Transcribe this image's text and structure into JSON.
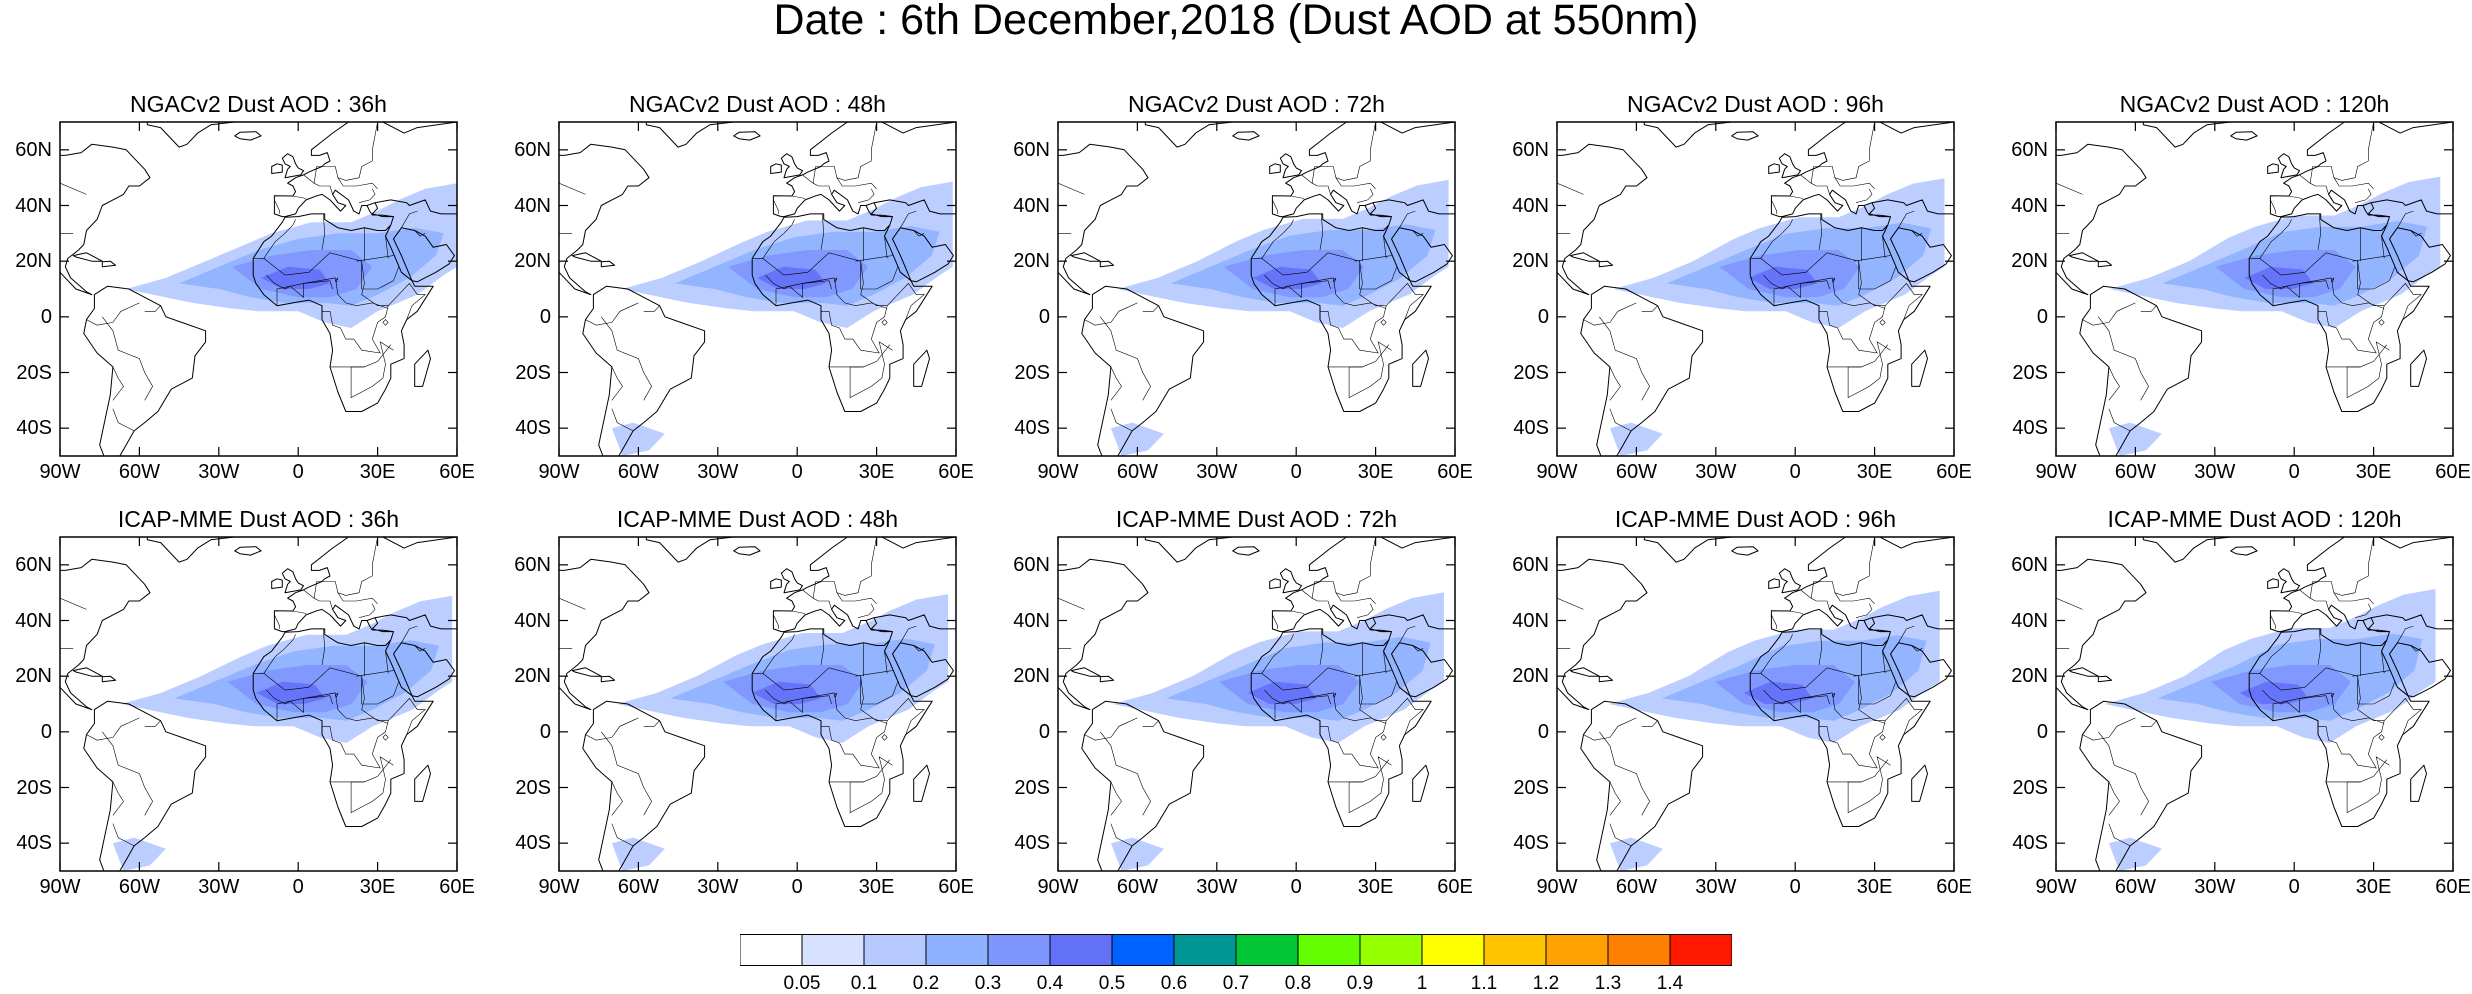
{
  "title": "Date : 6th December,2018 (Dust AOD at 550nm)",
  "panels": [
    {
      "title": "NGACv2 Dust AOD : 36h",
      "model": "NGACv2",
      "lead": "36h",
      "southern_plume": false
    },
    {
      "title": "NGACv2 Dust AOD : 48h",
      "model": "NGACv2",
      "lead": "48h",
      "southern_plume": true
    },
    {
      "title": "NGACv2 Dust AOD : 72h",
      "model": "NGACv2",
      "lead": "72h",
      "southern_plume": true
    },
    {
      "title": "NGACv2 Dust AOD : 96h",
      "model": "NGACv2",
      "lead": "96h",
      "southern_plume": true
    },
    {
      "title": "NGACv2 Dust AOD : 120h",
      "model": "NGACv2",
      "lead": "120h",
      "southern_plume": true
    },
    {
      "title": "ICAP-MME Dust AOD : 36h",
      "model": "ICAP-MME",
      "lead": "36h",
      "southern_plume": true
    },
    {
      "title": "ICAP-MME Dust AOD : 48h",
      "model": "ICAP-MME",
      "lead": "48h",
      "southern_plume": true
    },
    {
      "title": "ICAP-MME Dust AOD : 72h",
      "model": "ICAP-MME",
      "lead": "72h",
      "southern_plume": true
    },
    {
      "title": "ICAP-MME Dust AOD : 96h",
      "model": "ICAP-MME",
      "lead": "96h",
      "southern_plume": true
    },
    {
      "title": "ICAP-MME Dust AOD : 120h",
      "model": "ICAP-MME",
      "lead": "120h",
      "southern_plume": true
    }
  ],
  "axes": {
    "lat_labels": [
      "60N",
      "40N",
      "20N",
      "0",
      "20S",
      "40S"
    ],
    "lat_values": [
      60,
      40,
      20,
      0,
      -20,
      -40
    ],
    "lon_labels": [
      "90W",
      "60W",
      "30W",
      "0",
      "30E",
      "60E"
    ],
    "lon_values": [
      -90,
      -60,
      -30,
      0,
      30,
      60
    ],
    "lat_range": [
      -50,
      70
    ],
    "lon_range": [
      -90,
      60
    ]
  },
  "colorbar": {
    "labels": [
      "0.05",
      "0.1",
      "0.2",
      "0.3",
      "0.4",
      "0.5",
      "0.6",
      "0.7",
      "0.8",
      "0.9",
      "1",
      "1.1",
      "1.2",
      "1.3",
      "1.4"
    ],
    "colors": [
      "#ffffff",
      "#d6e2ff",
      "#b5c9ff",
      "#8eb2ff",
      "#7f96ff",
      "#6370f8",
      "#0062ff",
      "#009696",
      "#00c633",
      "#63ff00",
      "#96ff00",
      "#ffff00",
      "#ffc400",
      "#ffa100",
      "#ff7f00",
      "#ff1900"
    ]
  }
}
